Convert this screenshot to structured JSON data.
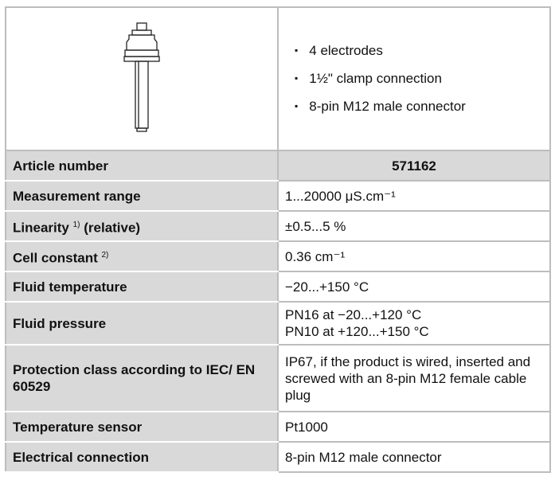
{
  "features": [
    "4 electrodes",
    "1½\" clamp connection",
    "8-pin M12 male connector"
  ],
  "rows": [
    {
      "label": "Article number",
      "value": "571162"
    },
    {
      "label": "Measurement range",
      "value": "1...20000 μS.cm⁻¹"
    },
    {
      "label": "Linearity",
      "note": "1)",
      "suffix": "(relative)",
      "value": "±0.5...5 %"
    },
    {
      "label": "Cell constant",
      "note": "2)",
      "value": "0.36 cm⁻¹"
    },
    {
      "label": "Fluid temperature",
      "value": "−20...+150 °C"
    },
    {
      "label": "Fluid pressure",
      "value": [
        "PN16 at −20...+120 °C",
        "PN10 at +120...+150 °C"
      ]
    },
    {
      "label": "Protection class according to IEC/ EN 60529",
      "value": "IP67, if the product is wired, inserted and screwed with an 8-pin M12 female cable plug"
    },
    {
      "label": "Temperature sensor",
      "value": "Pt1000"
    },
    {
      "label": "Electrical connection",
      "value": "8-pin M12 male connector"
    }
  ]
}
